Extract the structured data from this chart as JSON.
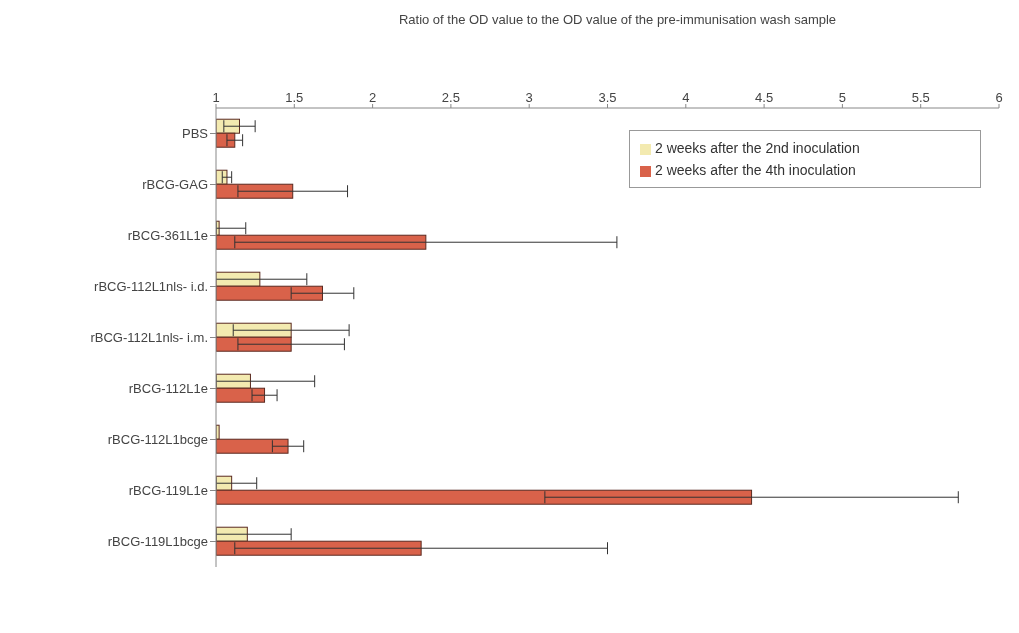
{
  "chart_data": {
    "type": "bar",
    "orientation": "horizontal",
    "xlabel": "Ratio of the OD value to the OD value of the pre-immunisation wash sample",
    "categories": [
      "PBS",
      "rBCG-GAG",
      "rBCG-361L1e",
      "rBCG-112L1nls- i.d.",
      "rBCG-112L1nls- i.m.",
      "rBCG-112L1e",
      "rBCG-112L1bcge",
      "rBCG-119L1e",
      "rBCG-119L1bcge"
    ],
    "series": [
      {
        "name": "2 weeks after the 2nd inoculation",
        "color": "#f3eab0",
        "values": [
          1.15,
          1.07,
          1.02,
          1.28,
          1.48,
          1.22,
          1.02,
          1.1,
          1.2
        ],
        "errors": [
          0.1,
          0.03,
          [
            1,
            1.19
          ],
          0.3,
          0.37,
          [
            1,
            1.63
          ],
          null,
          [
            1,
            1.26
          ],
          [
            1,
            1.48
          ]
        ]
      },
      {
        "name": "2 weeks after the 4th inoculation",
        "color": "#d9624a",
        "values": [
          1.12,
          1.49,
          2.34,
          1.68,
          1.48,
          1.31,
          1.46,
          4.42,
          2.31
        ],
        "errors": [
          0.05,
          0.35,
          1.22,
          0.2,
          0.34,
          0.08,
          0.1,
          1.32,
          1.19
        ]
      }
    ],
    "xlim": [
      1,
      6
    ],
    "xticks": [
      1,
      1.5,
      2,
      2.5,
      3,
      3.5,
      4,
      4.5,
      5,
      5.5,
      6
    ],
    "legend": "top right",
    "grid": false
  }
}
